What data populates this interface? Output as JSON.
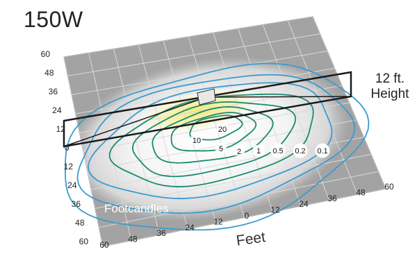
{
  "title": "150W",
  "mount_height": {
    "line1": "12 ft.",
    "line2": "Height"
  },
  "axis_label": "Feet",
  "units_label": "Footcandles",
  "left_ticks": [
    "60",
    "48",
    "36",
    "24",
    "12",
    "0",
    "12",
    "24",
    "36",
    "48",
    "60"
  ],
  "bottom_ticks": [
    "60",
    "48",
    "36",
    "24",
    "12",
    "0",
    "12",
    "24",
    "36",
    "48",
    "60"
  ],
  "contour_levels": [
    {
      "value": "20",
      "color": "#1a8a70",
      "badge": false
    },
    {
      "value": "10",
      "color": "#1a8a70",
      "badge": false
    },
    {
      "value": "5",
      "color": "#1a8a70",
      "badge": false
    },
    {
      "value": "2",
      "color": "#1a8a70",
      "badge": false
    },
    {
      "value": "1",
      "color": "#1a8a70",
      "badge": false
    },
    {
      "value": "0.5",
      "color": "#3a9bd0",
      "badge": true
    },
    {
      "value": "0.2",
      "color": "#3a9bd0",
      "badge": true
    },
    {
      "value": "0.1",
      "color": "#3a9bd0",
      "badge": true
    }
  ],
  "colors": {
    "grid_fill": "#a3a3a3",
    "grid_line": "#d9d9d9",
    "light_pool": "#ffffff",
    "hotspot": "#f2ea6a",
    "frame": "#1a1a1a"
  }
}
